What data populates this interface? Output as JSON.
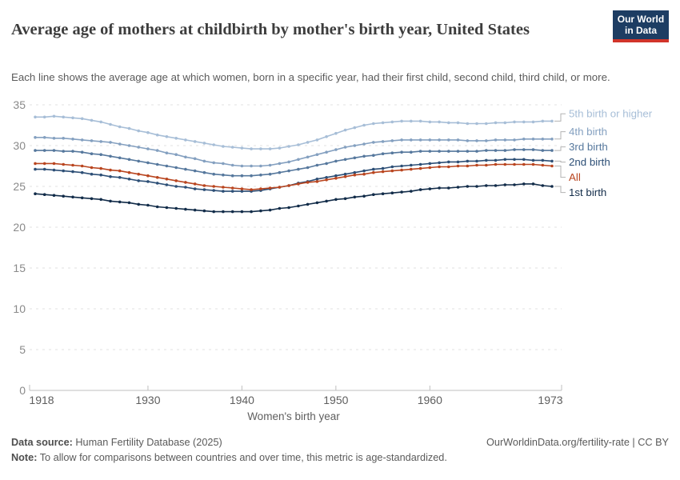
{
  "header": {
    "title": "Average age of mothers at childbirth by mother's birth year, United States",
    "subtitle": "Each line shows the average age at which women, born in a specific year, had their first child, second child, third child, or more.",
    "logo_line1": "Our World",
    "logo_line2": "in Data"
  },
  "footer": {
    "source_label": "Data source:",
    "source_text": " Human Fertility Database (2025)",
    "right_text": "OurWorldinData.org/fertility-rate | CC BY",
    "note_label": "Note:",
    "note_text": " To allow for comparisons between countries and over time, this metric is age-standardized."
  },
  "chart_data": {
    "type": "line",
    "title": "Average age of mothers at childbirth by mother's birth year, United States",
    "xlabel": "Women's birth year",
    "ylabel": "",
    "xlim": [
      1918,
      1973
    ],
    "ylim": [
      0,
      35
    ],
    "x_ticks": [
      1918,
      1930,
      1940,
      1950,
      1960,
      1973
    ],
    "y_ticks": [
      0,
      5,
      10,
      15,
      20,
      25,
      30,
      35
    ],
    "grid": "dashed-horizontal",
    "legend_position": "right",
    "marker": "dot",
    "x": [
      1918,
      1919,
      1920,
      1921,
      1922,
      1923,
      1924,
      1925,
      1926,
      1927,
      1928,
      1929,
      1930,
      1931,
      1932,
      1933,
      1934,
      1935,
      1936,
      1937,
      1938,
      1939,
      1940,
      1941,
      1942,
      1943,
      1944,
      1945,
      1946,
      1947,
      1948,
      1949,
      1950,
      1951,
      1952,
      1953,
      1954,
      1955,
      1956,
      1957,
      1958,
      1959,
      1960,
      1961,
      1962,
      1963,
      1964,
      1965,
      1966,
      1967,
      1968,
      1969,
      1970,
      1971,
      1972,
      1973
    ],
    "series": [
      {
        "name": "5th birth or higher",
        "color": "#a7bed7",
        "values": [
          33.5,
          33.5,
          33.6,
          33.5,
          33.4,
          33.3,
          33.1,
          32.9,
          32.6,
          32.3,
          32.1,
          31.8,
          31.6,
          31.3,
          31.1,
          30.9,
          30.7,
          30.5,
          30.3,
          30.1,
          29.9,
          29.8,
          29.7,
          29.6,
          29.6,
          29.6,
          29.7,
          29.9,
          30.1,
          30.4,
          30.7,
          31.1,
          31.5,
          31.9,
          32.2,
          32.5,
          32.7,
          32.8,
          32.9,
          33.0,
          33.0,
          33.0,
          32.9,
          32.9,
          32.8,
          32.8,
          32.7,
          32.7,
          32.7,
          32.8,
          32.8,
          32.9,
          32.9,
          32.9,
          33.0,
          33.0
        ]
      },
      {
        "name": "4th birth",
        "color": "#84a0c0",
        "values": [
          31.0,
          31.0,
          30.9,
          30.9,
          30.8,
          30.7,
          30.6,
          30.5,
          30.4,
          30.2,
          30.0,
          29.8,
          29.6,
          29.4,
          29.1,
          28.9,
          28.6,
          28.4,
          28.1,
          27.9,
          27.8,
          27.6,
          27.5,
          27.5,
          27.5,
          27.6,
          27.8,
          28.0,
          28.3,
          28.6,
          28.9,
          29.2,
          29.5,
          29.8,
          30.0,
          30.2,
          30.4,
          30.5,
          30.6,
          30.7,
          30.7,
          30.7,
          30.7,
          30.7,
          30.7,
          30.7,
          30.6,
          30.6,
          30.6,
          30.7,
          30.7,
          30.7,
          30.8,
          30.8,
          30.8,
          30.8
        ]
      },
      {
        "name": "3rd birth",
        "color": "#56789d",
        "values": [
          29.4,
          29.4,
          29.4,
          29.3,
          29.3,
          29.2,
          29.0,
          28.9,
          28.7,
          28.5,
          28.3,
          28.1,
          27.9,
          27.7,
          27.5,
          27.3,
          27.1,
          26.9,
          26.7,
          26.5,
          26.4,
          26.3,
          26.3,
          26.3,
          26.4,
          26.5,
          26.7,
          26.9,
          27.1,
          27.3,
          27.6,
          27.8,
          28.1,
          28.3,
          28.5,
          28.7,
          28.8,
          29.0,
          29.1,
          29.2,
          29.2,
          29.3,
          29.3,
          29.3,
          29.3,
          29.3,
          29.3,
          29.3,
          29.4,
          29.4,
          29.4,
          29.5,
          29.5,
          29.5,
          29.4,
          29.4
        ]
      },
      {
        "name": "2nd birth",
        "color": "#2d4f76",
        "values": [
          27.1,
          27.1,
          27.0,
          26.9,
          26.8,
          26.7,
          26.5,
          26.4,
          26.2,
          26.1,
          25.9,
          25.7,
          25.6,
          25.4,
          25.2,
          25.0,
          24.9,
          24.7,
          24.6,
          24.5,
          24.4,
          24.4,
          24.4,
          24.4,
          24.5,
          24.7,
          24.9,
          25.1,
          25.4,
          25.6,
          25.9,
          26.1,
          26.3,
          26.5,
          26.7,
          26.9,
          27.1,
          27.2,
          27.4,
          27.5,
          27.6,
          27.7,
          27.8,
          27.9,
          28.0,
          28.0,
          28.1,
          28.1,
          28.2,
          28.2,
          28.3,
          28.3,
          28.3,
          28.2,
          28.2,
          28.1
        ]
      },
      {
        "name": "All",
        "color": "#b9451f",
        "values": [
          27.8,
          27.8,
          27.8,
          27.7,
          27.6,
          27.5,
          27.3,
          27.2,
          27.0,
          26.9,
          26.7,
          26.5,
          26.3,
          26.1,
          25.9,
          25.7,
          25.5,
          25.3,
          25.1,
          25.0,
          24.9,
          24.8,
          24.7,
          24.6,
          24.7,
          24.8,
          24.9,
          25.1,
          25.3,
          25.5,
          25.6,
          25.8,
          26.0,
          26.2,
          26.4,
          26.5,
          26.7,
          26.8,
          26.9,
          27.0,
          27.1,
          27.2,
          27.3,
          27.4,
          27.4,
          27.5,
          27.5,
          27.6,
          27.6,
          27.7,
          27.7,
          27.7,
          27.7,
          27.7,
          27.6,
          27.5
        ]
      },
      {
        "name": "1st birth",
        "color": "#122c49",
        "values": [
          24.1,
          24.0,
          23.9,
          23.8,
          23.7,
          23.6,
          23.5,
          23.4,
          23.2,
          23.1,
          23.0,
          22.8,
          22.7,
          22.5,
          22.4,
          22.3,
          22.2,
          22.1,
          22.0,
          21.9,
          21.9,
          21.9,
          21.9,
          21.9,
          22.0,
          22.1,
          22.3,
          22.4,
          22.6,
          22.8,
          23.0,
          23.2,
          23.4,
          23.5,
          23.7,
          23.8,
          24.0,
          24.1,
          24.2,
          24.3,
          24.4,
          24.6,
          24.7,
          24.8,
          24.8,
          24.9,
          25.0,
          25.0,
          25.1,
          25.1,
          25.2,
          25.2,
          25.3,
          25.3,
          25.1,
          25.0
        ]
      }
    ]
  }
}
